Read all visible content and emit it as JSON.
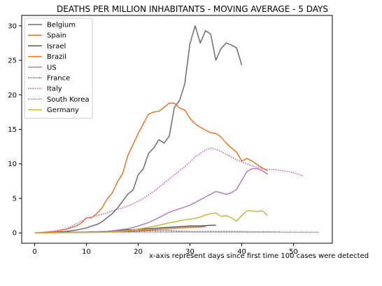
{
  "chart_data": {
    "type": "line",
    "title": "DEATHS PER MILLION INHABITANTS - MOVING AVERAGE - 5 DAYS",
    "xlabel": "",
    "ylabel": "",
    "xlim": [
      -2.5,
      57.5
    ],
    "ylim": [
      -1.5,
      31.5
    ],
    "xticks": [
      0,
      10,
      20,
      30,
      40,
      50
    ],
    "yticks": [
      0,
      5,
      10,
      15,
      20,
      25,
      30
    ],
    "grid": false,
    "legend_position": "top-left",
    "series": [
      {
        "name": "Belgium",
        "color": "#6b6b78",
        "dash": "",
        "x": [
          0,
          2,
          4,
          6,
          8,
          10,
          11,
          12,
          13,
          14,
          15,
          16,
          17,
          18,
          19,
          20,
          21,
          22,
          23,
          24,
          25,
          26,
          27,
          28,
          29,
          30,
          31,
          32,
          33,
          34,
          35,
          36,
          37,
          38,
          39,
          40
        ],
        "y": [
          0,
          0.05,
          0.1,
          0.2,
          0.4,
          0.7,
          1.0,
          1.2,
          1.6,
          2.2,
          2.8,
          3.6,
          4.6,
          5.6,
          6.2,
          8.4,
          9.3,
          11.5,
          12.3,
          13.5,
          13.0,
          14.0,
          18.2,
          19.2,
          21.6,
          27.4,
          30.0,
          27.5,
          29.3,
          28.8,
          25.0,
          26.7,
          27.5,
          27.2,
          26.8,
          24.3
        ]
      },
      {
        "name": "Spain",
        "color": "#e8762b",
        "dash": "",
        "x": [
          0,
          2,
          4,
          6,
          8,
          9,
          10,
          11,
          12,
          13,
          14,
          15,
          16,
          17,
          18,
          19,
          20,
          21,
          22,
          23,
          24,
          25,
          26,
          27,
          28,
          29,
          30,
          31,
          32,
          33,
          34,
          35,
          36,
          37,
          38,
          39,
          40,
          41,
          42,
          43,
          44,
          45
        ],
        "y": [
          0,
          0.1,
          0.2,
          0.5,
          1.0,
          1.4,
          2.2,
          2.2,
          2.8,
          3.6,
          4.9,
          5.8,
          7.4,
          8.6,
          11.2,
          12.8,
          14.4,
          15.8,
          17.2,
          17.5,
          17.6,
          18.2,
          18.8,
          18.8,
          18.1,
          17.8,
          16.6,
          15.8,
          15.3,
          14.9,
          14.5,
          14.4,
          13.9,
          13.0,
          12.3,
          11.7,
          10.4,
          10.8,
          10.4,
          9.9,
          9.4,
          9.0
        ]
      },
      {
        "name": "Israel",
        "color": "#555555",
        "dash": "",
        "x": [
          0,
          5,
          10,
          14,
          16,
          17,
          18,
          20,
          22,
          24,
          26,
          28,
          30,
          32,
          34,
          35
        ],
        "y": [
          0,
          0.05,
          0.1,
          0.2,
          0.3,
          0.4,
          0.45,
          0.5,
          0.6,
          0.7,
          0.8,
          0.9,
          1.0,
          1.0,
          1.1,
          1.1
        ]
      },
      {
        "name": "Brazil",
        "color": "#e8762b",
        "dash": "",
        "x": [
          0,
          5,
          10,
          14,
          16,
          18,
          20,
          22,
          24,
          26,
          28,
          30,
          32,
          33
        ],
        "y": [
          0,
          0.05,
          0.1,
          0.15,
          0.2,
          0.25,
          0.3,
          0.4,
          0.5,
          0.6,
          0.7,
          0.8,
          0.85,
          0.9
        ]
      },
      {
        "name": "US",
        "color": "#b57cba",
        "dash": "",
        "x": [
          0,
          5,
          10,
          14,
          16,
          18,
          20,
          22,
          24,
          26,
          28,
          30,
          32,
          33,
          34,
          35,
          36,
          37,
          38,
          39,
          40,
          41,
          42,
          43,
          44,
          45
        ],
        "y": [
          0,
          0.05,
          0.1,
          0.2,
          0.4,
          0.6,
          1.0,
          1.5,
          2.2,
          3.0,
          3.5,
          4.0,
          4.8,
          5.2,
          5.6,
          6.0,
          5.8,
          5.6,
          5.8,
          6.3,
          7.6,
          8.9,
          9.3,
          9.3,
          9.0,
          8.5
        ]
      },
      {
        "name": "France",
        "color": "#333333",
        "dash": "1,1.3",
        "x": [
          0,
          4,
          8,
          12,
          16,
          20,
          22,
          24,
          26,
          28,
          30,
          32,
          34,
          36,
          38,
          40,
          42,
          44,
          46,
          48,
          50,
          52,
          54,
          55
        ],
        "y": [
          0,
          0.05,
          0.1,
          0.15,
          0.2,
          0.25,
          0.3,
          0.3,
          0.3,
          0.25,
          0.2,
          0.2,
          0.2,
          0.2,
          0.2,
          0.2,
          0.15,
          0.15,
          0.15,
          0.1,
          0.1,
          0.1,
          0.1,
          0.1
        ]
      },
      {
        "name": "Italy",
        "color": "#d45fb8",
        "dash": "1.6,1.6",
        "x": [
          0,
          2,
          4,
          6,
          7,
          8,
          9,
          10,
          11,
          12,
          13,
          14,
          15,
          16,
          17,
          18,
          19,
          20,
          21,
          22,
          23,
          24,
          25,
          26,
          27,
          28,
          29,
          30,
          31,
          32,
          33,
          34,
          35,
          36,
          37,
          38,
          39,
          40,
          41,
          42,
          43,
          44,
          45,
          46,
          47,
          48,
          49,
          50,
          51,
          52
        ],
        "y": [
          0,
          0.1,
          0.3,
          0.6,
          0.9,
          1.3,
          1.7,
          2.1,
          2.3,
          2.5,
          2.7,
          2.9,
          3.2,
          3.4,
          3.6,
          3.9,
          4.2,
          4.6,
          5.0,
          5.5,
          6.0,
          6.6,
          7.2,
          7.8,
          8.4,
          9.0,
          9.6,
          10.3,
          11.0,
          11.5,
          12.0,
          12.3,
          12.1,
          11.8,
          11.4,
          11.0,
          10.6,
          10.3,
          10.0,
          9.7,
          9.5,
          9.3,
          9.2,
          9.2,
          9.1,
          9.0,
          8.9,
          8.7,
          8.5,
          8.2
        ]
      },
      {
        "name": "South Korea",
        "color": "#8a5c8d",
        "dash": "1,1.3",
        "x": [
          0,
          4,
          8,
          12,
          16,
          20,
          24,
          28,
          32,
          36,
          40,
          44,
          48,
          52,
          55
        ],
        "y": [
          0,
          0.05,
          0.1,
          0.1,
          0.1,
          0.1,
          0.1,
          0.1,
          0.1,
          0.1,
          0.1,
          0.1,
          0.1,
          0.1,
          0.1
        ]
      },
      {
        "name": "Germany",
        "color": "#c9b83e",
        "dash": "",
        "x": [
          0,
          5,
          10,
          14,
          16,
          18,
          20,
          22,
          24,
          26,
          27,
          28,
          29,
          30,
          31,
          32,
          33,
          34,
          35,
          36,
          37,
          38,
          39,
          40,
          41,
          42,
          43,
          44,
          45
        ],
        "y": [
          0,
          0.02,
          0.05,
          0.1,
          0.2,
          0.35,
          0.55,
          0.8,
          1.1,
          1.45,
          1.6,
          1.75,
          1.9,
          2.0,
          2.1,
          2.3,
          2.6,
          2.8,
          2.9,
          2.4,
          2.5,
          2.2,
          1.7,
          2.5,
          3.2,
          3.2,
          3.1,
          3.2,
          2.5
        ]
      }
    ]
  },
  "footnote": "x-axis represent days since first time 100 cases were detected"
}
